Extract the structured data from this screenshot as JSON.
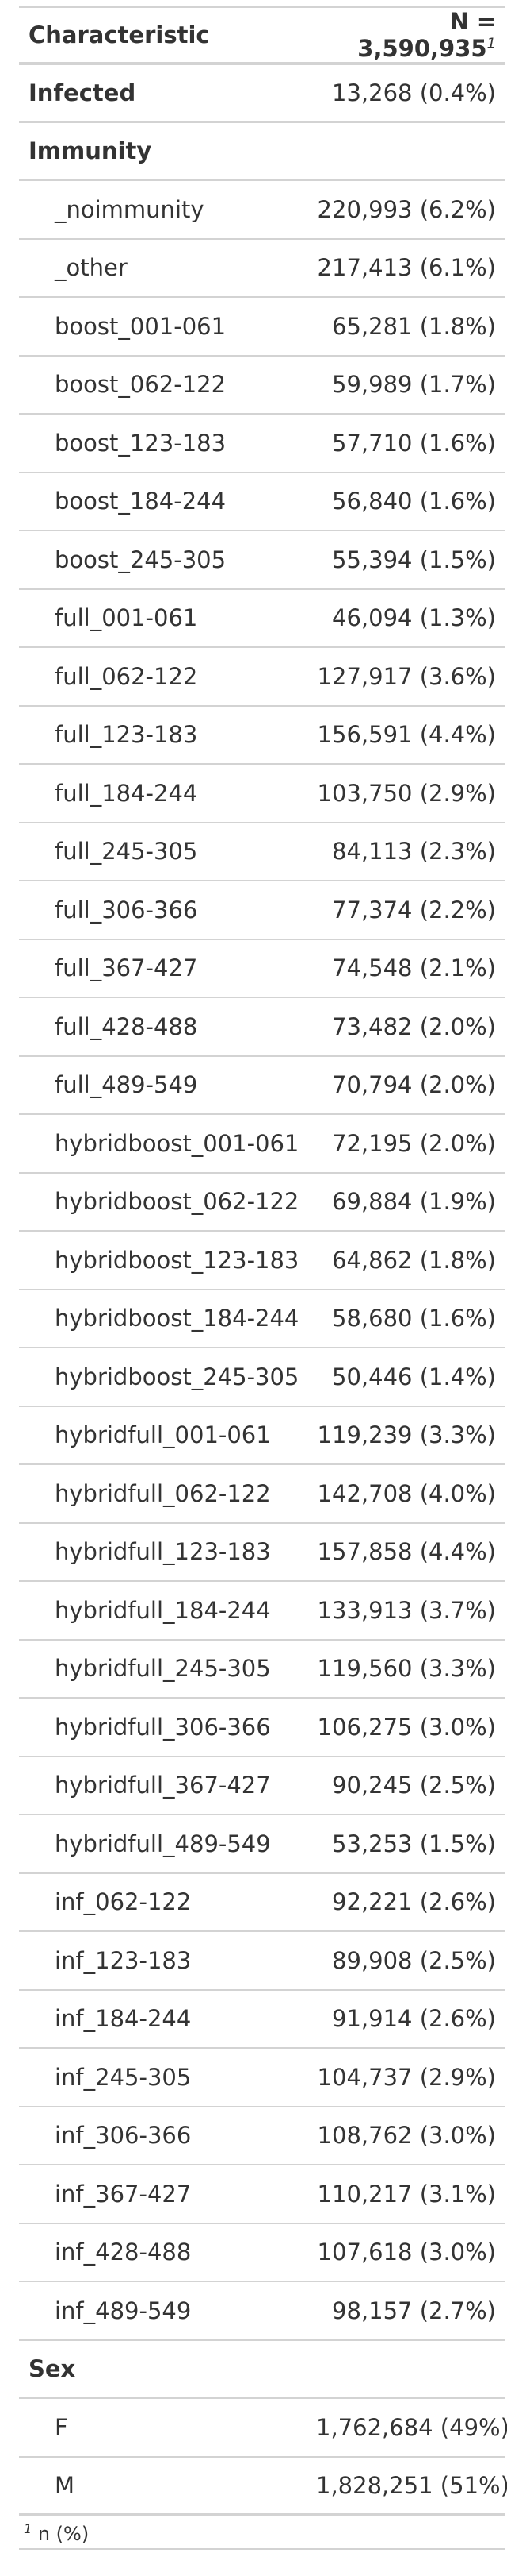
{
  "header": {
    "characteristic": "Characteristic",
    "n_label": "N = 3,590,935",
    "n_footnote_mark": "1"
  },
  "rows": [
    {
      "type": "group",
      "label": "Infected",
      "value": "13,268 (0.4%)"
    },
    {
      "type": "group",
      "label": "Immunity",
      "value": ""
    },
    {
      "type": "level",
      "label": "_noimmunity",
      "value": "220,993 (6.2%)"
    },
    {
      "type": "level",
      "label": "_other",
      "value": "217,413 (6.1%)"
    },
    {
      "type": "level",
      "label": "boost_001-061",
      "value": "65,281 (1.8%)"
    },
    {
      "type": "level",
      "label": "boost_062-122",
      "value": "59,989 (1.7%)"
    },
    {
      "type": "level",
      "label": "boost_123-183",
      "value": "57,710 (1.6%)"
    },
    {
      "type": "level",
      "label": "boost_184-244",
      "value": "56,840 (1.6%)"
    },
    {
      "type": "level",
      "label": "boost_245-305",
      "value": "55,394 (1.5%)"
    },
    {
      "type": "level",
      "label": "full_001-061",
      "value": "46,094 (1.3%)"
    },
    {
      "type": "level",
      "label": "full_062-122",
      "value": "127,917 (3.6%)"
    },
    {
      "type": "level",
      "label": "full_123-183",
      "value": "156,591 (4.4%)"
    },
    {
      "type": "level",
      "label": "full_184-244",
      "value": "103,750 (2.9%)"
    },
    {
      "type": "level",
      "label": "full_245-305",
      "value": "84,113 (2.3%)"
    },
    {
      "type": "level",
      "label": "full_306-366",
      "value": "77,374 (2.2%)"
    },
    {
      "type": "level",
      "label": "full_367-427",
      "value": "74,548 (2.1%)"
    },
    {
      "type": "level",
      "label": "full_428-488",
      "value": "73,482 (2.0%)"
    },
    {
      "type": "level",
      "label": "full_489-549",
      "value": "70,794 (2.0%)"
    },
    {
      "type": "level",
      "label": "hybridboost_001-061",
      "value": "72,195 (2.0%)"
    },
    {
      "type": "level",
      "label": "hybridboost_062-122",
      "value": "69,884 (1.9%)"
    },
    {
      "type": "level",
      "label": "hybridboost_123-183",
      "value": "64,862 (1.8%)"
    },
    {
      "type": "level",
      "label": "hybridboost_184-244",
      "value": "58,680 (1.6%)"
    },
    {
      "type": "level",
      "label": "hybridboost_245-305",
      "value": "50,446 (1.4%)"
    },
    {
      "type": "level",
      "label": "hybridfull_001-061",
      "value": "119,239 (3.3%)"
    },
    {
      "type": "level",
      "label": "hybridfull_062-122",
      "value": "142,708 (4.0%)"
    },
    {
      "type": "level",
      "label": "hybridfull_123-183",
      "value": "157,858 (4.4%)"
    },
    {
      "type": "level",
      "label": "hybridfull_184-244",
      "value": "133,913 (3.7%)"
    },
    {
      "type": "level",
      "label": "hybridfull_245-305",
      "value": "119,560 (3.3%)"
    },
    {
      "type": "level",
      "label": "hybridfull_306-366",
      "value": "106,275 (3.0%)"
    },
    {
      "type": "level",
      "label": "hybridfull_367-427",
      "value": "90,245 (2.5%)"
    },
    {
      "type": "level",
      "label": "hybridfull_489-549",
      "value": "53,253 (1.5%)"
    },
    {
      "type": "level",
      "label": "inf_062-122",
      "value": "92,221 (2.6%)"
    },
    {
      "type": "level",
      "label": "inf_123-183",
      "value": "89,908 (2.5%)"
    },
    {
      "type": "level",
      "label": "inf_184-244",
      "value": "91,914 (2.6%)"
    },
    {
      "type": "level",
      "label": "inf_245-305",
      "value": "104,737 (2.9%)"
    },
    {
      "type": "level",
      "label": "inf_306-366",
      "value": "108,762 (3.0%)"
    },
    {
      "type": "level",
      "label": "inf_367-427",
      "value": "110,217 (3.1%)"
    },
    {
      "type": "level",
      "label": "inf_428-488",
      "value": "107,618 (3.0%)"
    },
    {
      "type": "level",
      "label": "inf_489-549",
      "value": "98,157 (2.7%)"
    },
    {
      "type": "group",
      "label": "Sex",
      "value": ""
    },
    {
      "type": "level",
      "label": "F",
      "value": "1,762,684 (49%)"
    },
    {
      "type": "level",
      "label": "M",
      "value": "1,828,251 (51%)"
    }
  ],
  "footnote": {
    "mark": "1",
    "text": "n (%)"
  },
  "colors": {
    "text": "#333333",
    "rule": "#d3d3d3",
    "background": "#ffffff"
  }
}
